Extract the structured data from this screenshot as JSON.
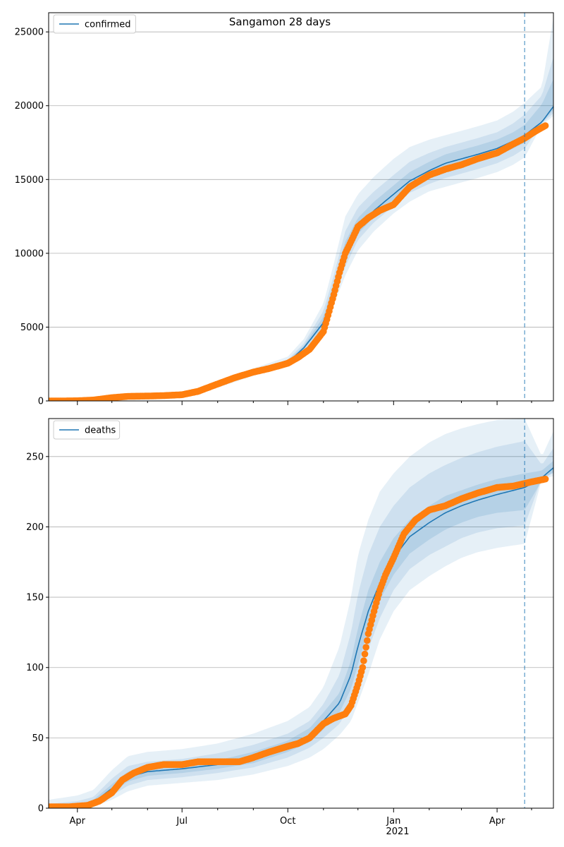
{
  "title": "Sangamon 28 days",
  "x_tick_labels": [
    "Apr",
    "Jul",
    "Oct",
    "Jan",
    "Apr"
  ],
  "x_year_label": "2021",
  "colors": {
    "model_line": "#1f77b4",
    "observed": "#ff7f0e",
    "band": "#1f77b4",
    "grid": "#b0b0b0",
    "cutoff_line": "#1f77b4"
  },
  "chart_data": [
    {
      "type": "line",
      "title": "Sangamon 28 days",
      "x_start": "2020-03-07",
      "x_end": "2021-05-20",
      "cutoff_date": "2021-04-25",
      "legend": [
        "confirmed"
      ],
      "legend_position": "upper left",
      "grid": "y",
      "ylim": [
        0,
        26300
      ],
      "yticks": [
        0,
        5000,
        10000,
        15000,
        20000,
        25000
      ],
      "xticks": [
        "2020-04-01",
        "2020-07-01",
        "2020-10-01",
        "2021-01-01",
        "2021-04-01"
      ],
      "minor_xticks": [
        "2020-05-01",
        "2020-06-01",
        "2020-08-01",
        "2020-09-01",
        "2020-11-01",
        "2020-12-01",
        "2021-02-01",
        "2021-03-01",
        "2021-05-01"
      ],
      "model": {
        "name": "confirmed",
        "dates": [
          "2020-03-07",
          "2020-04-01",
          "2020-05-01",
          "2020-06-01",
          "2020-07-01",
          "2020-08-01",
          "2020-09-01",
          "2020-10-01",
          "2020-10-15",
          "2020-11-01",
          "2020-11-10",
          "2020-11-20",
          "2020-12-01",
          "2020-12-15",
          "2021-01-01",
          "2021-01-15",
          "2021-02-01",
          "2021-02-15",
          "2021-03-01",
          "2021-03-15",
          "2021-04-01",
          "2021-04-15",
          "2021-04-25",
          "2021-05-10",
          "2021-05-20"
        ],
        "values": [
          0,
          20,
          180,
          340,
          420,
          1100,
          1900,
          2600,
          3600,
          5300,
          7500,
          10000,
          11800,
          12900,
          14000,
          14900,
          15600,
          16100,
          16400,
          16700,
          17100,
          17600,
          18000,
          18900,
          19950
        ]
      },
      "bands": [
        {
          "lower": [
            0,
            10,
            150,
            300,
            380,
            900,
            1700,
            2400,
            3200,
            4600,
            6500,
            8500,
            10200,
            11500,
            12700,
            13500,
            14200,
            14500,
            14800,
            15100,
            15500,
            16000,
            16500,
            18700,
            19300
          ],
          "upper": [
            100,
            60,
            240,
            420,
            500,
            1300,
            2200,
            3000,
            4200,
            6600,
            9300,
            12500,
            14000,
            15200,
            16400,
            17200,
            17700,
            18000,
            18300,
            18600,
            19000,
            19600,
            20200,
            21300,
            26000
          ]
        },
        {
          "lower": [
            0,
            15,
            160,
            320,
            400,
            1000,
            1800,
            2500,
            3400,
            4900,
            7000,
            9100,
            10900,
            12100,
            13200,
            14100,
            14700,
            15100,
            15400,
            15700,
            16100,
            16600,
            17100,
            18800,
            19500
          ],
          "upper": [
            60,
            40,
            210,
            380,
            460,
            1200,
            2050,
            2800,
            3900,
            6100,
            8500,
            11500,
            13100,
            14200,
            15300,
            16200,
            16800,
            17200,
            17500,
            17800,
            18200,
            18800,
            19400,
            20700,
            23300
          ]
        },
        {
          "lower": [
            0,
            18,
            170,
            330,
            410,
            1050,
            1850,
            2550,
            3500,
            5100,
            7200,
            9500,
            11300,
            12500,
            13600,
            14500,
            15100,
            15600,
            15900,
            16200,
            16600,
            17100,
            17500,
            18850,
            19700
          ],
          "upper": [
            30,
            30,
            195,
            360,
            440,
            1150,
            1950,
            2700,
            3750,
            5700,
            8000,
            10800,
            12400,
            13500,
            14600,
            15500,
            16200,
            16700,
            17000,
            17300,
            17700,
            18200,
            18700,
            20100,
            21800
          ]
        }
      ],
      "observed": {
        "name": "observed",
        "dates": [
          "2020-03-07",
          "2020-03-20",
          "2020-04-01",
          "2020-04-15",
          "2020-05-01",
          "2020-05-15",
          "2020-06-01",
          "2020-06-15",
          "2020-07-01",
          "2020-07-15",
          "2020-08-01",
          "2020-08-15",
          "2020-09-01",
          "2020-09-15",
          "2020-10-01",
          "2020-10-10",
          "2020-10-20",
          "2020-11-01",
          "2020-11-05",
          "2020-11-10",
          "2020-11-15",
          "2020-11-20",
          "2020-11-25",
          "2020-12-01",
          "2020-12-10",
          "2020-12-20",
          "2021-01-01",
          "2021-01-15",
          "2021-02-01",
          "2021-02-15",
          "2021-03-01",
          "2021-03-15",
          "2021-04-01",
          "2021-04-15",
          "2021-04-25",
          "2021-05-05",
          "2021-05-13"
        ],
        "values": [
          0,
          0,
          10,
          60,
          220,
          310,
          330,
          360,
          420,
          650,
          1150,
          1550,
          1950,
          2200,
          2550,
          2950,
          3500,
          4700,
          5800,
          7200,
          8700,
          10000,
          10800,
          11800,
          12400,
          12900,
          13300,
          14500,
          15300,
          15700,
          16000,
          16400,
          16800,
          17400,
          17800,
          18300,
          18650
        ]
      }
    },
    {
      "type": "line",
      "title": "",
      "x_start": "2020-03-07",
      "x_end": "2021-05-20",
      "cutoff_date": "2021-04-25",
      "legend": [
        "deaths"
      ],
      "legend_position": "upper left",
      "grid": "y",
      "ylim": [
        0,
        277
      ],
      "yticks": [
        0,
        50,
        100,
        150,
        200,
        250
      ],
      "xticks": [
        "2020-04-01",
        "2020-07-01",
        "2020-10-01",
        "2021-01-01",
        "2021-04-01"
      ],
      "minor_xticks": [
        "2020-05-01",
        "2020-06-01",
        "2020-08-01",
        "2020-09-01",
        "2020-11-01",
        "2020-12-01",
        "2021-02-01",
        "2021-03-01",
        "2021-05-01"
      ],
      "model": {
        "name": "deaths",
        "dates": [
          "2020-03-07",
          "2020-04-01",
          "2020-04-15",
          "2020-05-01",
          "2020-05-15",
          "2020-06-01",
          "2020-07-01",
          "2020-08-01",
          "2020-09-01",
          "2020-10-01",
          "2020-10-20",
          "2020-11-01",
          "2020-11-15",
          "2020-11-25",
          "2020-12-01",
          "2020-12-10",
          "2020-12-20",
          "2021-01-01",
          "2021-01-15",
          "2021-02-01",
          "2021-02-15",
          "2021-03-01",
          "2021-03-15",
          "2021-04-01",
          "2021-04-25",
          "2021-05-10",
          "2021-05-20"
        ],
        "values": [
          0,
          1,
          4,
          14,
          22,
          26,
          28,
          31,
          36,
          44,
          52,
          62,
          75,
          95,
          115,
          140,
          160,
          178,
          193,
          203,
          210,
          215,
          219,
          223,
          228,
          235,
          242
        ]
      },
      "bands": [
        {
          "lower": [
            0,
            0,
            1,
            6,
            12,
            16,
            18,
            20,
            24,
            30,
            36,
            42,
            52,
            62,
            75,
            95,
            120,
            140,
            155,
            165,
            172,
            178,
            182,
            185,
            188,
            234,
            236
          ],
          "upper": [
            6,
            9,
            13,
            27,
            37,
            40,
            42,
            46,
            53,
            62,
            72,
            86,
            115,
            150,
            180,
            205,
            225,
            238,
            250,
            260,
            266,
            270,
            273,
            276,
            277,
            250,
            268
          ]
        },
        {
          "lower": [
            0,
            0,
            2,
            9,
            16,
            20,
            22,
            25,
            29,
            36,
            43,
            50,
            60,
            74,
            90,
            113,
            135,
            155,
            170,
            180,
            186,
            192,
            196,
            199,
            201,
            235,
            238
          ],
          "upper": [
            3,
            5,
            8,
            21,
            30,
            33,
            35,
            39,
            45,
            53,
            62,
            74,
            95,
            125,
            152,
            180,
            200,
            215,
            228,
            238,
            244,
            249,
            253,
            257,
            261,
            244,
            256
          ]
        },
        {
          "lower": [
            0,
            0,
            3,
            11,
            19,
            23,
            25,
            28,
            32,
            40,
            47,
            56,
            68,
            85,
            102,
            127,
            148,
            166,
            181,
            191,
            198,
            203,
            207,
            210,
            212,
            233,
            239
          ],
          "upper": [
            1,
            2,
            6,
            17,
            26,
            29,
            31,
            34,
            40,
            48,
            57,
            68,
            82,
            105,
            128,
            155,
            175,
            192,
            205,
            215,
            222,
            226,
            230,
            234,
            238,
            240,
            247
          ]
        }
      ],
      "observed": {
        "name": "observed",
        "dates": [
          "2020-03-07",
          "2020-03-25",
          "2020-04-10",
          "2020-04-20",
          "2020-05-01",
          "2020-05-10",
          "2020-05-20",
          "2020-06-01",
          "2020-06-15",
          "2020-07-01",
          "2020-07-15",
          "2020-08-01",
          "2020-08-20",
          "2020-09-01",
          "2020-09-15",
          "2020-10-01",
          "2020-10-10",
          "2020-10-20",
          "2020-11-01",
          "2020-11-10",
          "2020-11-20",
          "2020-11-25",
          "2020-12-01",
          "2020-12-05",
          "2020-12-10",
          "2020-12-15",
          "2020-12-20",
          "2020-12-25",
          "2021-01-01",
          "2021-01-10",
          "2021-01-20",
          "2021-02-01",
          "2021-02-15",
          "2021-03-01",
          "2021-03-15",
          "2021-04-01",
          "2021-04-15",
          "2021-05-01",
          "2021-05-13"
        ],
        "values": [
          1,
          1,
          2,
          5,
          11,
          20,
          25,
          29,
          31,
          31,
          33,
          33,
          33,
          36,
          40,
          44,
          46,
          50,
          60,
          64,
          67,
          73,
          88,
          100,
          124,
          140,
          155,
          166,
          178,
          195,
          205,
          212,
          215,
          220,
          224,
          228,
          229,
          232,
          234
        ]
      }
    }
  ]
}
